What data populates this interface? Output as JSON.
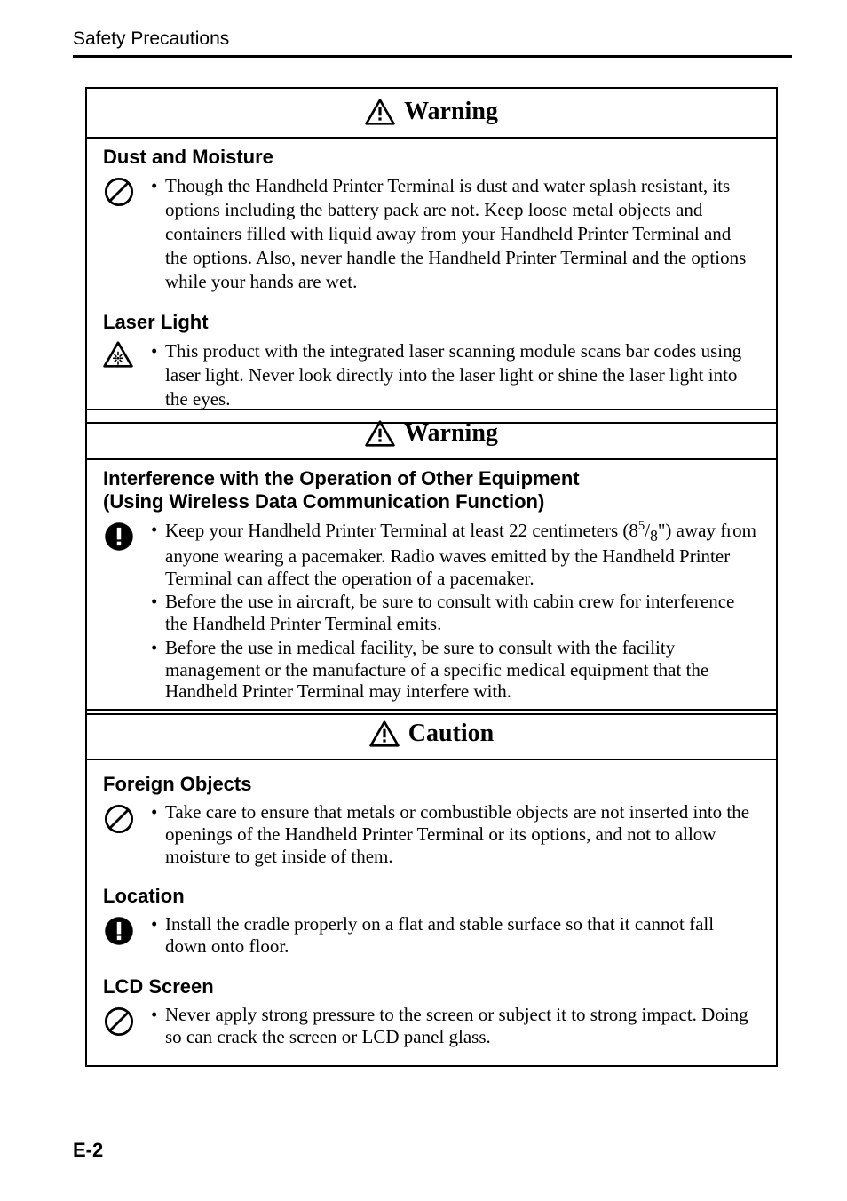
{
  "colors": {
    "text": "#000000",
    "background": "#ffffff",
    "border": "#000000"
  },
  "typography": {
    "serif_family": "Times New Roman",
    "sans_family": "Arial",
    "body_fontsize_pt": 16,
    "heading_fontsize_pt": 21,
    "subhead_fontsize_pt": 17
  },
  "header": {
    "section_title": "Safety Precautions"
  },
  "panels": [
    {
      "id": "warning1",
      "banner": {
        "icon": "warning-triangle",
        "text": "Warning"
      },
      "groups": [
        {
          "title": "Dust and Moisture",
          "icon": "prohibit-circle",
          "bullets": [
            "Though the Handheld Printer Terminal is dust and water splash resistant, its options including the battery pack are not. Keep loose metal objects and containers filled with liquid away from your Handheld Printer Terminal and the options. Also, never handle the Handheld Printer Terminal and the options while your hands are wet."
          ]
        },
        {
          "title": "Laser Light",
          "icon": "laser-triangle",
          "bullets": [
            "This product with the integrated laser scanning module scans bar codes using laser light. Never look directly into the laser light or shine the laser light into the eyes."
          ]
        }
      ]
    },
    {
      "id": "warning2",
      "banner": {
        "icon": "warning-triangle",
        "text": "Warning"
      },
      "groups": [
        {
          "title_lines": [
            "Interference with the Operation of Other Equipment",
            "(Using Wireless Data Communication Function)"
          ],
          "icon": "mandatory-circle",
          "bullets": [
            "Keep your Handheld Printer Terminal at least 22 centimeters (8⁵/₈\") away from anyone wearing a pacemaker. Radio waves emitted by the Handheld Printer Terminal can affect the operation of a pacemaker.",
            "Before the use in aircraft, be sure to consult with cabin crew for interference the Handheld Printer Terminal emits.",
            "Before the use in medical facility, be sure to consult with the facility management or the manufacture of a specific medical equipment that the Handheld Printer Terminal may interfere with."
          ]
        }
      ]
    },
    {
      "id": "caution",
      "banner": {
        "icon": "warning-triangle",
        "text": "Caution"
      },
      "groups": [
        {
          "title": "Foreign Objects",
          "icon": "prohibit-circle",
          "bullets": [
            "Take care to ensure that metals or combustible objects are not inserted into the openings of the Handheld Printer Terminal or its options, and not to allow moisture to get inside of them."
          ]
        },
        {
          "title": "Location",
          "icon": "mandatory-circle",
          "bullets": [
            "Install the cradle properly on a flat and stable surface so that it cannot fall down onto floor."
          ]
        },
        {
          "title": "LCD Screen",
          "icon": "prohibit-circle",
          "bullets": [
            "Never apply strong pressure to the screen or subject it to strong impact. Doing so can crack the screen or LCD panel glass."
          ]
        }
      ]
    }
  ],
  "frac": {
    "whole": "8",
    "num": "5",
    "den": "8",
    "suffix": "\""
  },
  "page_number": "E-2"
}
